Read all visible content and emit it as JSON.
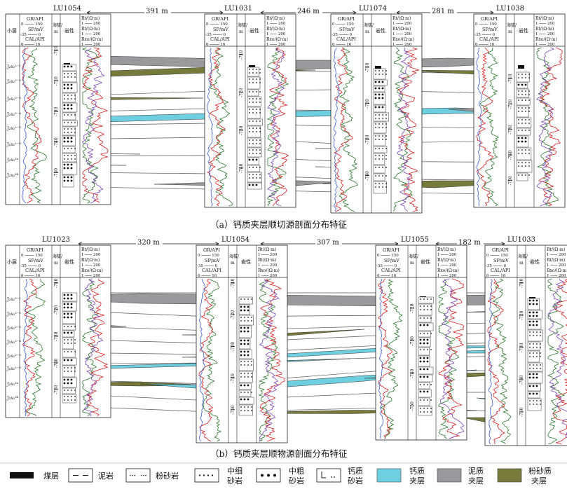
{
  "colors": {
    "calcareous_layer": "#6ecfe0",
    "mudstone_interlayer": "#9a9a9c",
    "silty_interlayer": "#767a3a",
    "gr_curve": "#2a7a2a",
    "sp_curve": "#d62020",
    "cal_curve": "#3a5fcd",
    "res_curve_a": "#2a7a2a",
    "res_curve_b": "#d62020",
    "res_curve_c": "#7d46b8"
  },
  "header": {
    "col_layer": "小层",
    "col_logs_1": "GR/API",
    "col_logs_2": "SP/mV",
    "col_logs_3": "CAL/API",
    "col_depth_1": "海拔/",
    "col_depth_2": "m",
    "col_litho": "岩性",
    "col_res_1": "Rt/(Ω·m)",
    "col_res_2": "Rxo/(Ω·m)",
    "scale_gr": [
      "0",
      "150"
    ],
    "scale_sp": [
      "-35",
      "0"
    ],
    "scale_cal": [
      "6",
      "16"
    ],
    "scale_res": [
      "1",
      "200"
    ]
  },
  "panel_a": {
    "caption": "（a）钙质夹层顺切源剖面分布特征",
    "wells": [
      "LU1054",
      "LU1031",
      "LU1074",
      "LU1038"
    ],
    "spacings": [
      "391 m",
      "246 m",
      "281 m"
    ],
    "layers": [
      "J₂s₂²⁻¹",
      "J₂s₂²⁻²",
      "J₂s₂²⁻³",
      "J₂s₂²⁻⁴",
      "J₂s₂²⁻⁵",
      "J₂s₂²⁻⁶",
      "J₂s₂³ᵃ",
      "J₂s₂³ᵇ"
    ],
    "depth_ticks": {
      "w1": [
        "-710",
        "-720",
        "-730",
        "-740",
        "-750"
      ],
      "w2": [
        "-710",
        "-720",
        "-730",
        "-740"
      ],
      "w3": [
        "-710",
        "-720",
        "-730",
        "-740"
      ],
      "w4": [
        "-710",
        "-720",
        "-730",
        "-740",
        "-750"
      ]
    }
  },
  "panel_b": {
    "caption": "（b）钙质夹层顺物源剖面分布特征",
    "wells": [
      "LU1023",
      "LU1054",
      "LU1055",
      "LU1033"
    ],
    "spacings": [
      "320 m",
      "307 m",
      "182 m"
    ],
    "layers": [
      "J₂s₂²⁻¹",
      "J₂s₂²⁻²",
      "J₂s₂²⁻³",
      "J₂s₂²⁻⁴",
      "J₂s₂²⁻⁵",
      "J₂s₂²⁻⁶",
      "J₂s₂³ᵃ",
      "J₂s₂³ᵇ"
    ],
    "depth_ticks": {
      "w1": [
        "-710",
        "-720",
        "-730",
        "-740",
        "-750"
      ],
      "w2": [
        "-710",
        "-720",
        "-730",
        "-740",
        "-750"
      ],
      "w3": [
        "-720",
        "-730",
        "-740",
        "-750"
      ],
      "w4": [
        "-710",
        "-720",
        "-730",
        "-740",
        "-750"
      ]
    }
  },
  "legend": [
    {
      "key": "coal",
      "label": "煤层"
    },
    {
      "key": "mudstone",
      "label": "泥岩"
    },
    {
      "key": "siltstone",
      "label": "粉砂岩"
    },
    {
      "key": "fine_medium_sandstone",
      "label_1": "中细",
      "label_2": "砂岩"
    },
    {
      "key": "medium_coarse_sandstone",
      "label_1": "中粗",
      "label_2": "砂岩"
    },
    {
      "key": "calcareous_sandstone",
      "label_1": "钙质",
      "label_2": "砂岩"
    },
    {
      "key": "calcareous_interlayer",
      "label_1": "钙质",
      "label_2": "夹层"
    },
    {
      "key": "mudstone_interlayer",
      "label_1": "泥质",
      "label_2": "夹层"
    },
    {
      "key": "silty_interlayer",
      "label_1": "粉砂质",
      "label_2": "夹层"
    }
  ]
}
